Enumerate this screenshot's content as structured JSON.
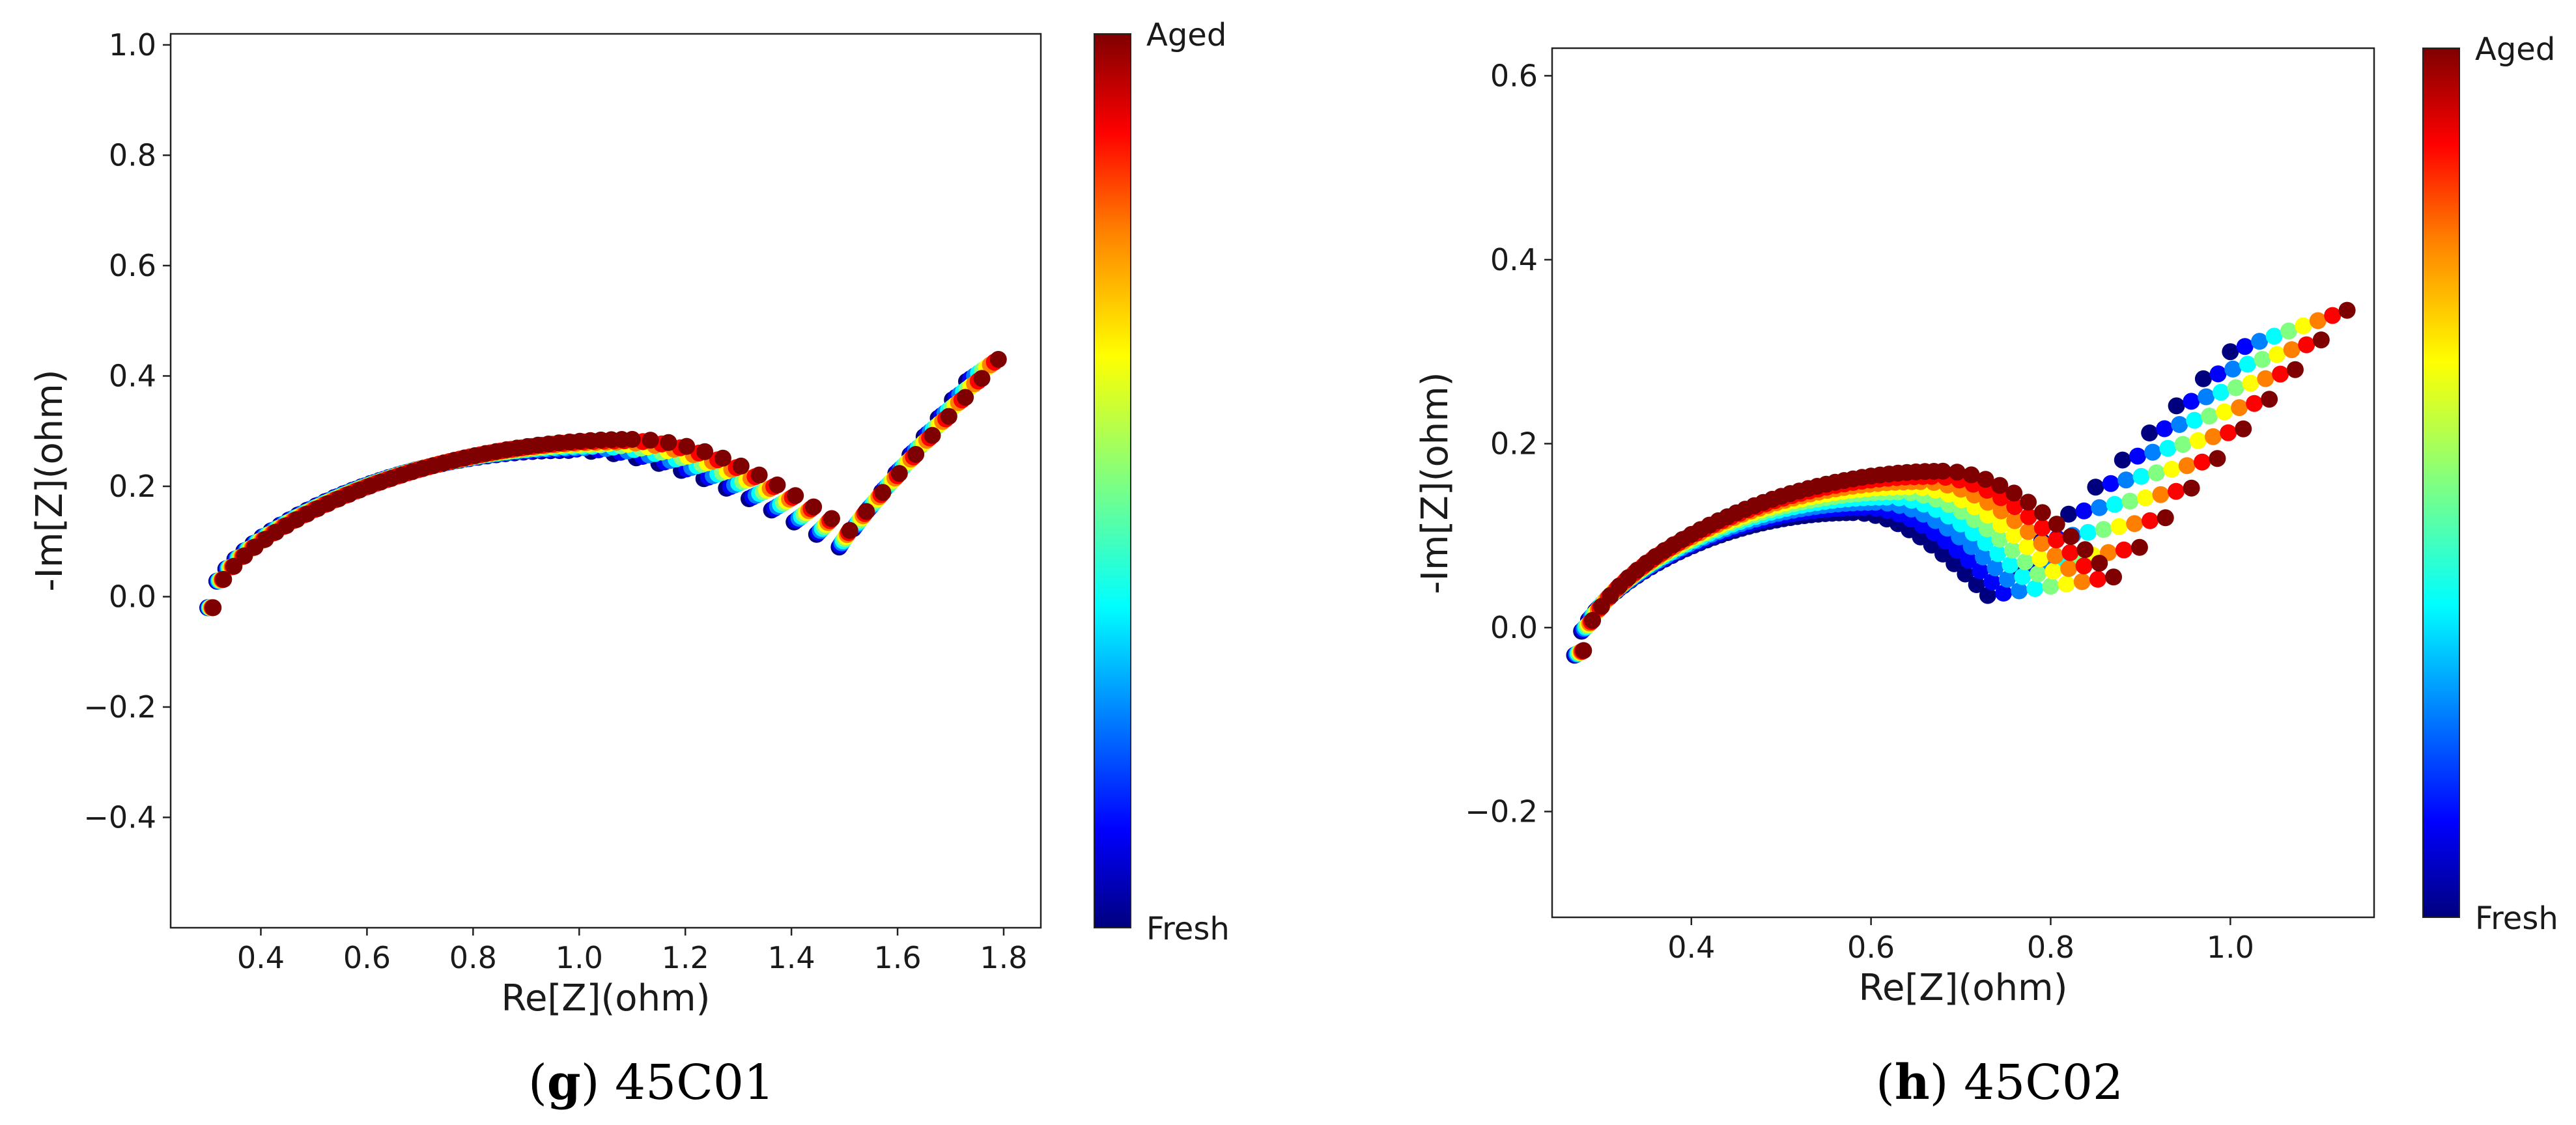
{
  "colorbar": {
    "top_label": "Aged",
    "bottom_label": "Fresh",
    "colormap": [
      "#00007f",
      "#0000ff",
      "#0080ff",
      "#00ffff",
      "#80ff80",
      "#ffff00",
      "#ff8000",
      "#ff0000",
      "#7f0000"
    ]
  },
  "chart_data": [
    {
      "id": "g",
      "type": "scatter",
      "caption": {
        "letter": "g",
        "open": "(",
        "close": ")",
        "text": " 45C01"
      },
      "xlabel": "Re[Z](ohm)",
      "ylabel": "-Im[Z](ohm)",
      "xlim": [
        0.23,
        1.87
      ],
      "ylim": [
        -0.6,
        1.02
      ],
      "xticks": [
        0.4,
        0.6,
        0.8,
        1.0,
        1.2,
        1.4,
        1.6,
        1.8
      ],
      "xtick_labels": [
        "0.4",
        "0.6",
        "0.8",
        "1.0",
        "1.2",
        "1.4",
        "1.6",
        "1.8"
      ],
      "yticks": [
        -0.4,
        -0.2,
        0.0,
        0.2,
        0.4,
        0.6,
        0.8,
        1.0
      ],
      "ytick_labels": [
        "−0.4",
        "−0.2",
        "0.0",
        "0.2",
        "0.4",
        "0.6",
        "0.8",
        "1.0"
      ],
      "n_series": 9,
      "series_note": "each series is one impedance spectrum, colored from Fresh (first) to Aged (last)",
      "fresh": {
        "start": [
          0.3,
          -0.02
        ],
        "peak": [
          0.98,
          0.265
        ],
        "min": [
          1.49,
          0.09
        ],
        "tail": [
          1.73,
          0.39
        ]
      },
      "aged": {
        "start": [
          0.31,
          -0.02
        ],
        "peak": [
          1.1,
          0.285
        ],
        "min": [
          1.51,
          0.12
        ],
        "tail": [
          1.79,
          0.43
        ]
      }
    },
    {
      "id": "h",
      "type": "scatter",
      "caption": {
        "letter": "h",
        "open": "(",
        "close": ")",
        "text": " 45C02"
      },
      "xlabel": "Re[Z](ohm)",
      "ylabel": "-Im[Z](ohm)",
      "xlim": [
        0.245,
        1.16
      ],
      "ylim": [
        -0.315,
        0.63
      ],
      "xticks": [
        0.4,
        0.6,
        0.8,
        1.0
      ],
      "xtick_labels": [
        "0.4",
        "0.6",
        "0.8",
        "1.0"
      ],
      "yticks": [
        -0.2,
        0.0,
        0.2,
        0.4,
        0.6
      ],
      "ytick_labels": [
        "−0.2",
        "0.0",
        "0.2",
        "0.4",
        "0.6"
      ],
      "n_series": 9,
      "series_note": "each series is one impedance spectrum, colored from Fresh (first) to Aged (last)",
      "fresh": {
        "start": [
          0.27,
          -0.03
        ],
        "peak": [
          0.58,
          0.125
        ],
        "min": [
          0.73,
          0.035
        ],
        "tail": [
          1.0,
          0.3
        ]
      },
      "aged": {
        "start": [
          0.28,
          -0.025
        ],
        "peak": [
          0.68,
          0.17
        ],
        "min": [
          0.87,
          0.055
        ],
        "tail": [
          1.13,
          0.345
        ]
      }
    }
  ]
}
